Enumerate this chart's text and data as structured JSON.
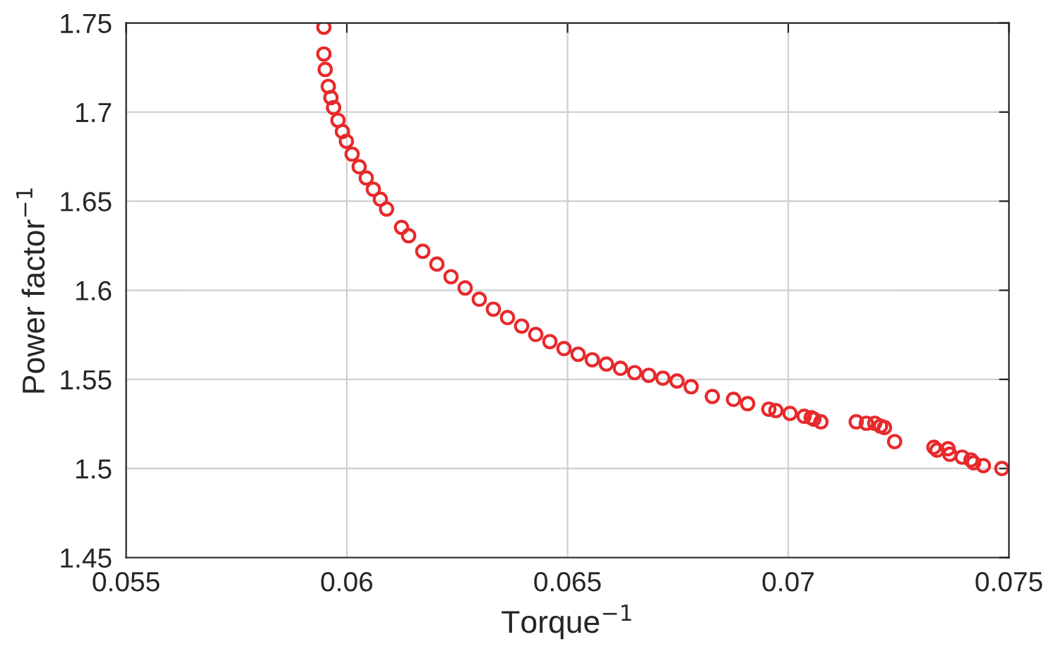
{
  "chart_data": {
    "type": "scatter",
    "xlabel": "Torque$^{−1}$",
    "ylabel": "Power factor$^{−1}$",
    "xlim": [
      0.055,
      0.075
    ],
    "ylim": [
      1.45,
      1.75
    ],
    "xticks": [
      0.055,
      0.06,
      0.065,
      0.07,
      0.075
    ],
    "yticks": [
      1.45,
      1.5,
      1.55,
      1.6,
      1.65,
      1.7,
      1.75
    ],
    "grid": true,
    "marker": "circle",
    "series": [
      {
        "color": "#e8292b",
        "x": [
          0.05948,
          0.05948,
          0.05951,
          0.05958,
          0.0597,
          0.0599,
          0.06012,
          0.06044,
          0.06076,
          0.06124,
          0.06172,
          0.06236,
          0.063,
          0.06364,
          0.06428,
          0.06492,
          0.06556,
          0.0662,
          0.06684,
          0.06748,
          0.06828,
          0.06876,
          0.06908,
          0.06956,
          0.06972,
          0.07004,
          0.07036,
          0.07052,
          0.07058,
          0.07074,
          0.07154,
          0.07177,
          0.07196,
          0.07209,
          0.07218,
          0.07241,
          0.0733,
          0.07337,
          0.07362,
          0.07366,
          0.07394,
          0.07414,
          0.0742,
          0.07442,
          0.07484,
          0.05964,
          0.0598,
          0.05999,
          0.06028,
          0.0606,
          0.0609,
          0.0614,
          0.06204,
          0.06268,
          0.06332,
          0.06396,
          0.0646,
          0.06524,
          0.06588,
          0.06652,
          0.06716,
          0.0678
        ],
        "values": [
          1.7476,
          1.7326,
          1.7239,
          1.7144,
          1.7025,
          1.6891,
          1.6764,
          1.663,
          1.6511,
          1.6353,
          1.6219,
          1.6076,
          1.595,
          1.5847,
          1.5752,
          1.5673,
          1.561,
          1.5562,
          1.5523,
          1.5491,
          1.5404,
          1.5388,
          1.5364,
          1.5333,
          1.5325,
          1.5309,
          1.5293,
          1.5285,
          1.5277,
          1.5262,
          1.5262,
          1.5254,
          1.5254,
          1.5238,
          1.523,
          1.5151,
          1.5119,
          1.5103,
          1.5111,
          1.508,
          1.5064,
          1.5048,
          1.5032,
          1.5016,
          1.5,
          1.7081,
          1.6954,
          1.6836,
          1.6693,
          1.6567,
          1.6456,
          1.6306,
          1.6147,
          1.6013,
          1.5894,
          1.5799,
          1.5712,
          1.5641,
          1.5586,
          1.5538,
          1.5507,
          1.5459
        ]
      }
    ]
  }
}
